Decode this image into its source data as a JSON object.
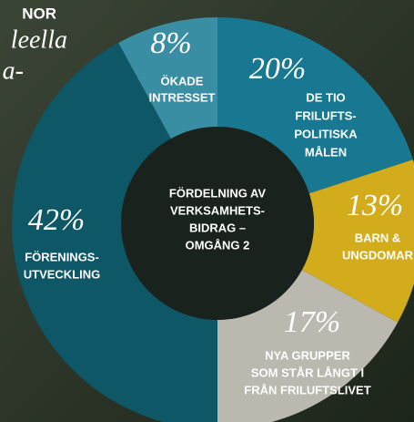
{
  "background_text": [
    "NOR",
    "leella",
    "a-"
  ],
  "chart_data": {
    "type": "donut",
    "title": [
      "FÖRDELNING AV",
      "VERKSAMHETS-",
      "BIDRAG –",
      "OMGÅNG 2"
    ],
    "categories": [
      [
        "DE TIO",
        "FRILUFTS-",
        "POLITISKA",
        "MÅLEN"
      ],
      [
        "BARN &",
        "UNGDOMAR"
      ],
      [
        "NYA GRUPPER",
        "SOM STÅR LÅNGT I",
        "FRÅN FRILUFTSLIVET"
      ],
      [
        "FÖRENINGS-",
        "UTVECKLING"
      ],
      [
        "ÖKADE",
        "INTRESSET"
      ]
    ],
    "values": [
      20,
      13,
      17,
      42,
      8
    ],
    "value_labels": [
      "20%",
      "13%",
      "17%",
      "42%",
      "8%"
    ],
    "colors": [
      "#187891",
      "#d3ac1c",
      "#bbb8b0",
      "#0e5766",
      "#3a8ea3"
    ]
  }
}
